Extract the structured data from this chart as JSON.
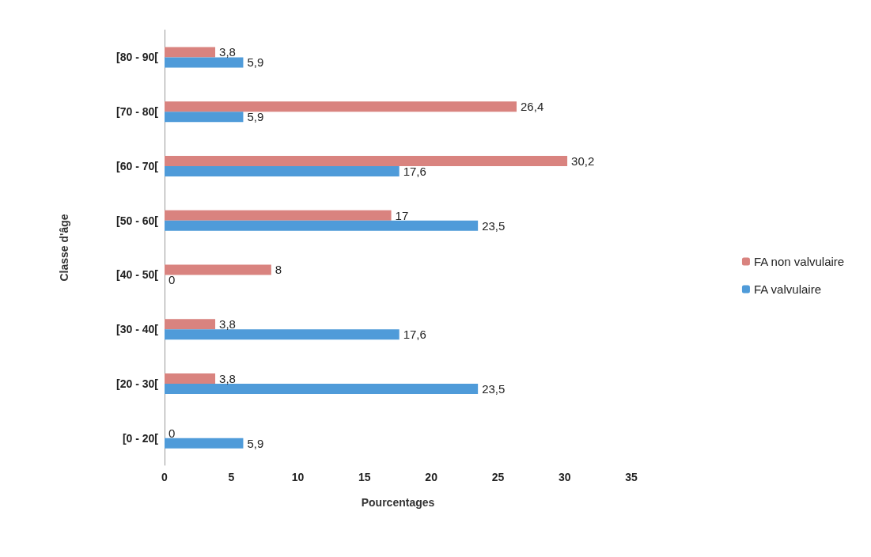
{
  "chart_data": {
    "type": "bar",
    "orientation": "horizontal",
    "xlabel": "Pourcentages",
    "ylabel": "Classe d'âge",
    "categories": [
      "[80 - 90[",
      "[70 - 80[",
      "[60 - 70[",
      "[50 - 60[",
      "[40 - 50[",
      "[30 - 40[",
      "[20 - 30[",
      "[0 - 20["
    ],
    "series": [
      {
        "name": "FA non valvulaire",
        "color": "#d9837f",
        "values": [
          3.8,
          26.4,
          30.2,
          17,
          8,
          3.8,
          3.8,
          0
        ],
        "value_labels": [
          "3,8",
          "26,4",
          "30,2",
          "17",
          "8",
          "3,8",
          "3,8",
          "0"
        ]
      },
      {
        "name": "FA valvulaire",
        "color": "#4f9bd9",
        "values": [
          5.9,
          5.9,
          17.6,
          23.5,
          0,
          17.6,
          23.5,
          5.9
        ],
        "value_labels": [
          "5,9",
          "5,9",
          "17,6",
          "23,5",
          "0",
          "17,6",
          "23,5",
          "5,9"
        ]
      }
    ],
    "xlim": [
      0,
      35
    ],
    "xticks": [
      0,
      5,
      10,
      15,
      20,
      25,
      30,
      35
    ],
    "grid": false,
    "legend": "right"
  }
}
